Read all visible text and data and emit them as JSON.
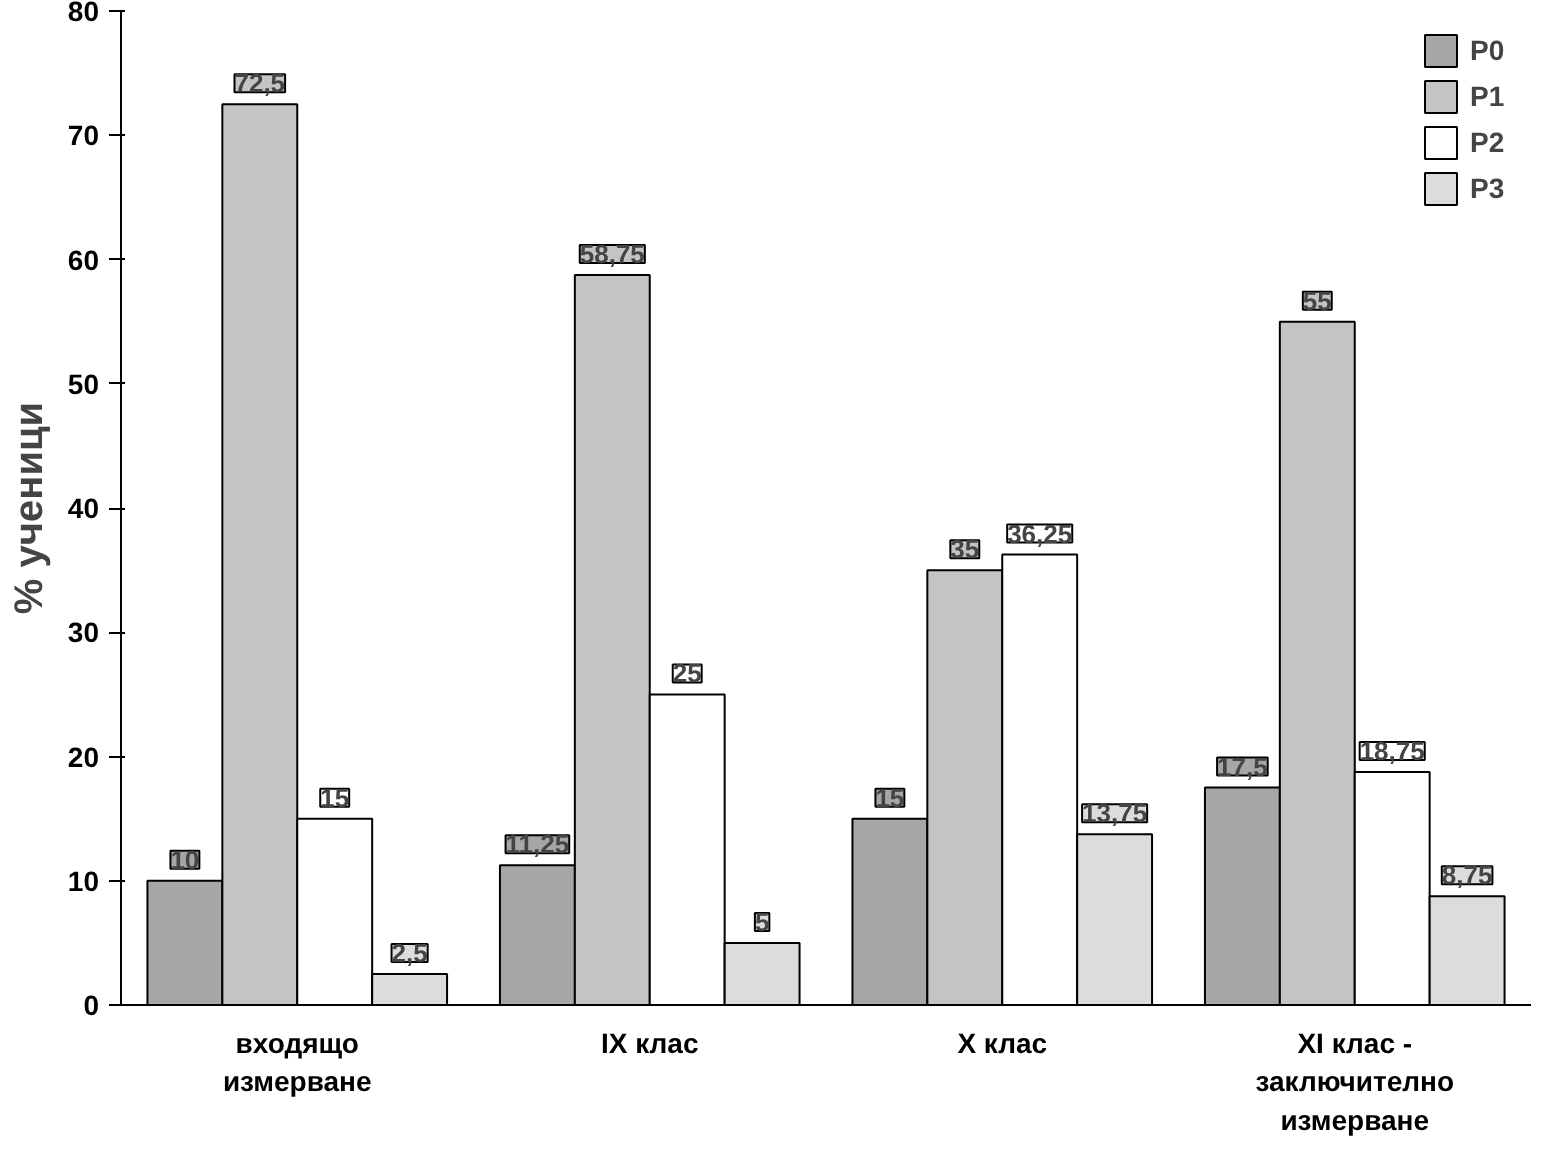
{
  "chart_data": {
    "type": "bar",
    "ylabel": "% ученици",
    "categories": [
      "входящо\nизмерване",
      "IX клас",
      "X клас",
      "XI клас -\nзаключително\nизмерване"
    ],
    "series": [
      {
        "name": "P0",
        "color": "#a6a6a6",
        "values": [
          10,
          11.25,
          15,
          17.5
        ],
        "value_labels": [
          "10",
          "11,25",
          "15",
          "17,5"
        ]
      },
      {
        "name": "P1",
        "color": "#c4c4c4",
        "values": [
          72.5,
          58.75,
          35,
          55
        ],
        "value_labels": [
          "72,5",
          "58,75",
          "35",
          "55"
        ]
      },
      {
        "name": "P2",
        "color": "#ffffff",
        "values": [
          15,
          25,
          36.25,
          18.75
        ],
        "value_labels": [
          "15",
          "25",
          "36,25",
          "18,75"
        ]
      },
      {
        "name": "P3",
        "color": "#dcdcdc",
        "values": [
          2.5,
          5,
          13.75,
          8.75
        ],
        "value_labels": [
          "2,5",
          "5",
          "13,75",
          "8,75"
        ]
      }
    ],
    "ylim": [
      0,
      80
    ],
    "yticks": [
      0,
      10,
      20,
      30,
      40,
      50,
      60,
      70,
      80
    ],
    "grid": false,
    "legend": "top right"
  }
}
